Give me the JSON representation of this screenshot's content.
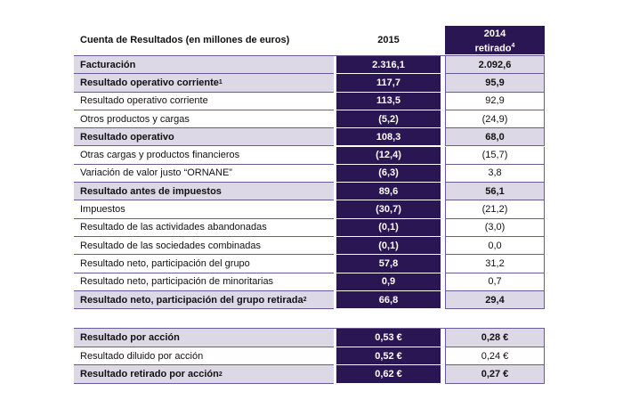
{
  "header": {
    "title": "Cuenta de Resultados (en millones de euros)",
    "col2015": "2015",
    "col2014": {
      "line1": "2014",
      "line2": "retirado",
      "note": "4"
    }
  },
  "table": {
    "rows": [
      {
        "label": "Facturación",
        "v2015": "2.316,1",
        "v2014": "2.092,6",
        "bold": true
      },
      {
        "label": "Resultado operativo corriente",
        "note": "1",
        "v2015": "117,7",
        "v2014": "95,9",
        "bold": true
      },
      {
        "label": "Resultado operativo corriente",
        "v2015": "113,5",
        "v2014": "92,9",
        "bold": false
      },
      {
        "label": "Otros productos y cargas",
        "v2015": "(5,2)",
        "v2014": "(24,9)",
        "bold": false
      },
      {
        "label": "Resultado operativo",
        "v2015": "108,3",
        "v2014": "68,0",
        "bold": true
      },
      {
        "label": "Otras cargas y productos financieros",
        "v2015": "(12,4)",
        "v2014": "(15,7)",
        "bold": false
      },
      {
        "label": "Variación de valor justo “ORNANE”",
        "v2015": "(6,3)",
        "v2014": "3,8",
        "bold": false
      },
      {
        "label": "Resultado antes de impuestos",
        "v2015": "89,6",
        "v2014": "56,1",
        "bold": true
      },
      {
        "label": "Impuestos",
        "v2015": "(30,7)",
        "v2014": "(21,2)",
        "bold": false
      },
      {
        "label": "Resultado de las actividades abandonadas",
        "v2015": "(0,1)",
        "v2014": "(3,0)",
        "bold": false
      },
      {
        "label": "Resultado de las sociedades combinadas",
        "v2015": "(0,1)",
        "v2014": "0,0",
        "bold": false
      },
      {
        "label": "Resultado neto, participación del grupo",
        "v2015": "57,8",
        "v2014": "31,2",
        "bold": false
      },
      {
        "label": "Resultado neto, participación de minoritarias",
        "v2015": "0,9",
        "v2014": "0,7",
        "bold": false
      },
      {
        "label": "Resultado neto, participación del grupo retirada",
        "note": "2",
        "v2015": "66,8",
        "v2014": "29,4",
        "bold": true
      }
    ]
  },
  "per_share": {
    "rows": [
      {
        "label": "Resultado por acción",
        "v2015": "0,53 €",
        "v2014": "0,28 €",
        "bold": true
      },
      {
        "label": "Resultado diluido por acción",
        "v2015": "0,52 €",
        "v2014": "0,24 €",
        "bold": false
      },
      {
        "label": "Resultado retirado por acción",
        "note": "2",
        "v2015": "0,62 €",
        "v2014": "0,27 €",
        "bold": true
      }
    ]
  }
}
